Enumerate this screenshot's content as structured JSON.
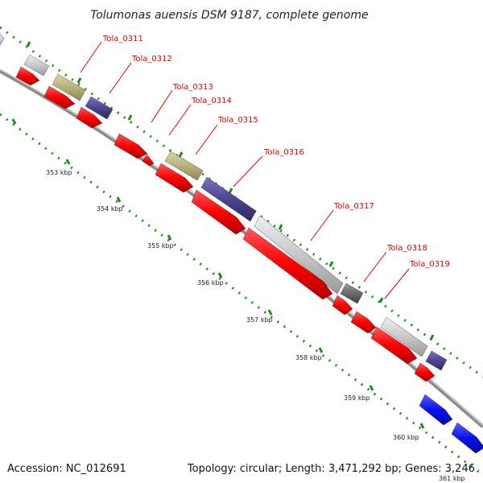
{
  "title": "Tolumonas auensis DSM 9187, complete genome",
  "footer": {
    "accession": "Accession: NC_012691",
    "summary": "Topology: circular; Length: 3,471,292 bp; Genes: 3,246"
  },
  "colors": {
    "backbone": "#8c8c8c",
    "cds": "#ff0000",
    "feature_khaki": "#b7b27a",
    "feature_purple": "#4b4593",
    "feature_grey": "#c8c8c8",
    "feature_dark": "#6a6a6a",
    "feature_blue": "#0a12ee",
    "tick": "#1a8a1a",
    "label": "#e00000"
  },
  "gene_labels": [
    "Tola_0311",
    "Tola_0312",
    "Tola_0313",
    "Tola_0314",
    "Tola_0315",
    "Tola_0316",
    "Tola_0317",
    "Tola_0318",
    "Tola_0319"
  ],
  "tick_labels": [
    "353 kbp",
    "354 kbp",
    "355 kbp",
    "356 kbp",
    "357 kbp",
    "358 kbp",
    "359 kbp",
    "360 kbp",
    "361 kbp"
  ]
}
